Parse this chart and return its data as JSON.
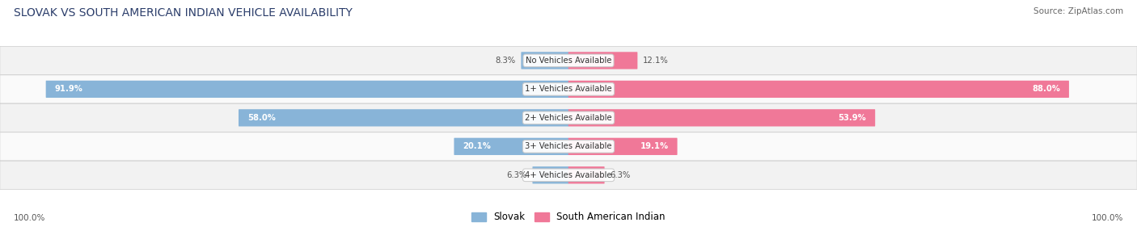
{
  "title": "SLOVAK VS SOUTH AMERICAN INDIAN VEHICLE AVAILABILITY",
  "source": "Source: ZipAtlas.com",
  "categories": [
    "No Vehicles Available",
    "1+ Vehicles Available",
    "2+ Vehicles Available",
    "3+ Vehicles Available",
    "4+ Vehicles Available"
  ],
  "slovak_values": [
    8.3,
    91.9,
    58.0,
    20.1,
    6.3
  ],
  "indian_values": [
    12.1,
    88.0,
    53.9,
    19.1,
    6.3
  ],
  "slovak_color": "#88b4d8",
  "indian_color": "#f07898",
  "slovak_color_light": "#b8d4ec",
  "indian_color_light": "#f8b0c8",
  "slovak_label": "Slovak",
  "indian_label": "South American Indian",
  "max_value": 100.0,
  "row_bg_odd": "#f2f2f2",
  "row_bg_even": "#fafafa",
  "fig_bg": "#ffffff",
  "title_color": "#2c3e6b",
  "source_color": "#666666",
  "label_color": "#444444",
  "value_color_inside": "#ffffff",
  "value_color_outside": "#555555"
}
